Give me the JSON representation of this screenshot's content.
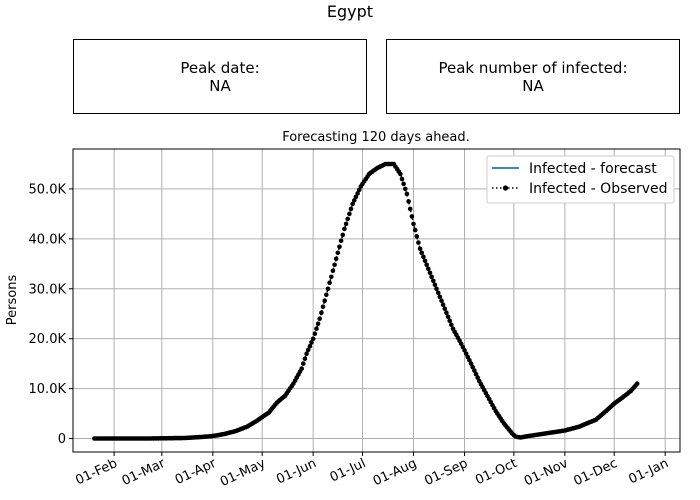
{
  "figure": {
    "title": "Egypt"
  },
  "boxes": {
    "peak_date_label": "Peak date:",
    "peak_date_value": "NA",
    "peak_infected_label": "Peak number of infected:",
    "peak_infected_value": "NA"
  },
  "chart_data": {
    "type": "line",
    "title": "Forecasting 120 days ahead.",
    "xlabel": "",
    "ylabel": "Persons",
    "ylim": [
      -2700,
      58000
    ],
    "xlim": [
      "2020-01-07",
      "2021-01-10"
    ],
    "grid": true,
    "legend_position": "upper-right",
    "x_ticks": [
      "01-Feb",
      "01-Mar",
      "01-Apr",
      "01-May",
      "01-Jun",
      "01-Jul",
      "01-Aug",
      "01-Sep",
      "01-Oct",
      "01-Nov",
      "01-Dec",
      "01-Jan"
    ],
    "x_tick_dates": [
      "2020-02-01",
      "2020-03-01",
      "2020-04-01",
      "2020-05-01",
      "2020-06-01",
      "2020-07-01",
      "2020-08-01",
      "2020-09-01",
      "2020-10-01",
      "2020-11-01",
      "2020-12-01",
      "2021-01-01"
    ],
    "y_ticks": [
      0,
      10000,
      20000,
      30000,
      40000,
      50000
    ],
    "y_tick_labels": [
      "0",
      "10.0K",
      "20.0K",
      "30.0K",
      "40.0K",
      "50.0K"
    ],
    "series": [
      {
        "name": "Infected - forecast",
        "color": "#1f77b4",
        "style": "solid",
        "points": []
      },
      {
        "name": "Infected - Observed",
        "color": "#000000",
        "style": "dotted-with-markers",
        "points": [
          [
            "2020-01-20",
            0
          ],
          [
            "2020-02-20",
            0
          ],
          [
            "2020-03-15",
            100
          ],
          [
            "2020-03-20",
            200
          ],
          [
            "2020-03-25",
            300
          ],
          [
            "2020-04-01",
            500
          ],
          [
            "2020-04-08",
            900
          ],
          [
            "2020-04-15",
            1500
          ],
          [
            "2020-04-22",
            2400
          ],
          [
            "2020-04-28",
            3600
          ],
          [
            "2020-05-05",
            5200
          ],
          [
            "2020-05-10",
            7200
          ],
          [
            "2020-05-15",
            8600
          ],
          [
            "2020-05-20",
            11000
          ],
          [
            "2020-05-25",
            14000
          ],
          [
            "2020-05-28",
            17000
          ],
          [
            "2020-06-01",
            20000
          ],
          [
            "2020-06-05",
            24000
          ],
          [
            "2020-06-10",
            30000
          ],
          [
            "2020-06-15",
            36000
          ],
          [
            "2020-06-20",
            42000
          ],
          [
            "2020-06-25",
            47000
          ],
          [
            "2020-06-30",
            50500
          ],
          [
            "2020-07-05",
            53000
          ],
          [
            "2020-07-10",
            54200
          ],
          [
            "2020-07-15",
            55000
          ],
          [
            "2020-07-20",
            55000
          ],
          [
            "2020-07-24",
            53000
          ],
          [
            "2020-07-28",
            49000
          ],
          [
            "2020-08-01",
            43000
          ],
          [
            "2020-08-05",
            38000
          ],
          [
            "2020-08-10",
            34000
          ],
          [
            "2020-08-15",
            30000
          ],
          [
            "2020-08-20",
            26000
          ],
          [
            "2020-08-25",
            22000
          ],
          [
            "2020-08-30",
            19000
          ],
          [
            "2020-09-05",
            15000
          ],
          [
            "2020-09-10",
            11500
          ],
          [
            "2020-09-15",
            8500
          ],
          [
            "2020-09-20",
            5500
          ],
          [
            "2020-09-25",
            3000
          ],
          [
            "2020-09-30",
            1000
          ],
          [
            "2020-10-02",
            400
          ],
          [
            "2020-10-05",
            200
          ],
          [
            "2020-10-10",
            500
          ],
          [
            "2020-10-20",
            1000
          ],
          [
            "2020-11-01",
            1600
          ],
          [
            "2020-11-10",
            2400
          ],
          [
            "2020-11-20",
            3800
          ],
          [
            "2020-11-26",
            5500
          ],
          [
            "2020-12-01",
            7000
          ],
          [
            "2020-12-06",
            8200
          ],
          [
            "2020-12-11",
            9500
          ],
          [
            "2020-12-15",
            11000
          ]
        ]
      }
    ]
  }
}
